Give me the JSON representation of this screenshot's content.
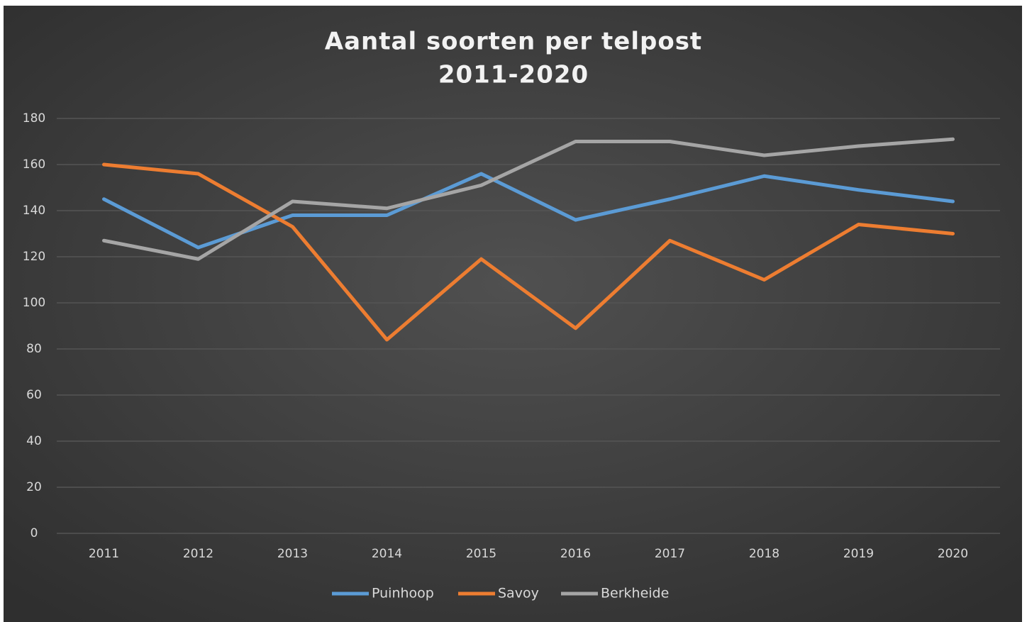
{
  "chart_data": {
    "type": "line",
    "title": [
      "Aantal soorten per telpost",
      "2011-2020"
    ],
    "categories": [
      "2011",
      "2012",
      "2013",
      "2014",
      "2015",
      "2016",
      "2017",
      "2018",
      "2019",
      "2020"
    ],
    "series": [
      {
        "name": "Puinhoop",
        "color": "#5b9bd5",
        "values": [
          145,
          124,
          138,
          138,
          156,
          136,
          145,
          155,
          149,
          144
        ]
      },
      {
        "name": "Savoy",
        "color": "#ed7d31",
        "values": [
          160,
          156,
          133,
          84,
          119,
          89,
          127,
          110,
          134,
          130
        ]
      },
      {
        "name": "Berkheide",
        "color": "#a5a5a5",
        "values": [
          127,
          119,
          144,
          141,
          151,
          170,
          170,
          164,
          168,
          171
        ]
      }
    ],
    "ylim": [
      0,
      180
    ],
    "yticks": [
      0,
      20,
      40,
      60,
      80,
      100,
      120,
      140,
      160,
      180
    ],
    "grid": true,
    "legend": "bottom"
  }
}
